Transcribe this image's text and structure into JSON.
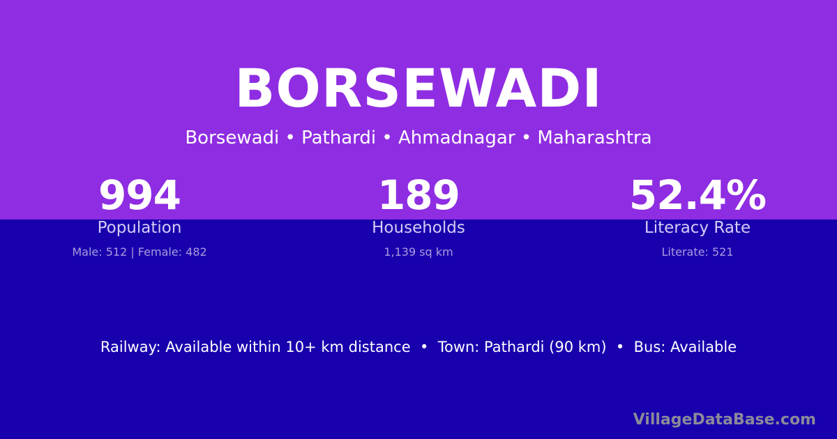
{
  "colors": {
    "top_bg": "#8f2de2",
    "bottom_bg": "#1800ad"
  },
  "title": "BORSEWADI",
  "breadcrumb": "Borsewadi • Pathardi • Ahmadnagar • Maharashtra",
  "stats": [
    {
      "value": "994",
      "label": "Population",
      "detail": "Male: 512 | Female: 482"
    },
    {
      "value": "189",
      "label": "Households",
      "detail": "1,139 sq km"
    },
    {
      "value": "52.4%",
      "label": "Literacy Rate",
      "detail": "Literate: 521"
    }
  ],
  "transport": "Railway: Available within 10+ km distance  •  Town: Pathardi (90 km)  •  Bus: Available",
  "brand": "VillageDataBase.com"
}
